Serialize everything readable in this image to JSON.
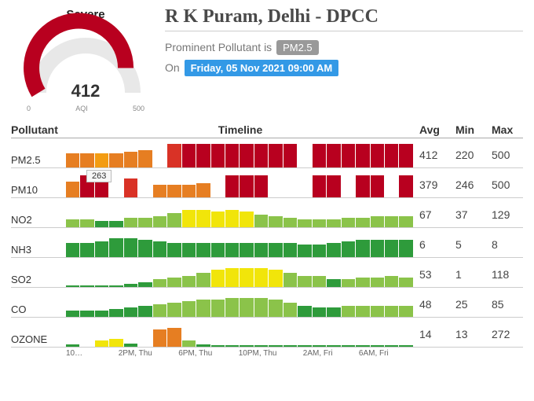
{
  "gauge": {
    "label": "Severe",
    "value": "412",
    "min": "0",
    "mid": "AQI",
    "max": "500",
    "ring_color": "#b8001f",
    "ring_bg": "#e8e8e8"
  },
  "header": {
    "location": "R K Puram, Delhi - DPCC",
    "prominent_prefix": "Prominent Pollutant is",
    "prominent_value": "PM2.5",
    "on_label": "On",
    "timestamp": "Friday, 05 Nov 2021 09:00 AM"
  },
  "columns": {
    "pollutant": "Pollutant",
    "timeline": "Timeline",
    "avg": "Avg",
    "min": "Min",
    "max": "Max"
  },
  "tooltip_value": "263",
  "colors": {
    "dark_red": "#b8001f",
    "red": "#d93226",
    "orange": "#e67e22",
    "lt_orange": "#f39c12",
    "yellow": "#f1e50a",
    "lt_green": "#8bc34a",
    "green": "#2e9b3b"
  },
  "pollutants": [
    {
      "name": "PM2.5",
      "avg": "412",
      "min": "220",
      "max": "500",
      "bars": [
        {
          "h": 18,
          "c": "orange"
        },
        {
          "h": 18,
          "c": "orange"
        },
        {
          "h": 18,
          "c": "lt_orange"
        },
        {
          "h": 18,
          "c": "orange"
        },
        {
          "h": 20,
          "c": "orange"
        },
        {
          "h": 22,
          "c": "orange"
        },
        {
          "h": 0,
          "c": "orange"
        },
        {
          "h": 30,
          "c": "red"
        },
        {
          "h": 30,
          "c": "dark_red"
        },
        {
          "h": 30,
          "c": "dark_red"
        },
        {
          "h": 30,
          "c": "dark_red"
        },
        {
          "h": 30,
          "c": "dark_red"
        },
        {
          "h": 30,
          "c": "dark_red"
        },
        {
          "h": 30,
          "c": "dark_red"
        },
        {
          "h": 30,
          "c": "dark_red"
        },
        {
          "h": 30,
          "c": "dark_red"
        },
        {
          "h": 0,
          "c": "dark_red"
        },
        {
          "h": 30,
          "c": "dark_red"
        },
        {
          "h": 30,
          "c": "dark_red"
        },
        {
          "h": 30,
          "c": "dark_red"
        },
        {
          "h": 30,
          "c": "dark_red"
        },
        {
          "h": 30,
          "c": "dark_red"
        },
        {
          "h": 30,
          "c": "dark_red"
        },
        {
          "h": 30,
          "c": "dark_red"
        }
      ]
    },
    {
      "name": "PM10",
      "avg": "379",
      "min": "246",
      "max": "500",
      "bars": [
        {
          "h": 20,
          "c": "orange"
        },
        {
          "h": 28,
          "c": "dark_red"
        },
        {
          "h": 26,
          "c": "dark_red"
        },
        {
          "h": 0,
          "c": "dark_red"
        },
        {
          "h": 24,
          "c": "red"
        },
        {
          "h": 0,
          "c": "red"
        },
        {
          "h": 16,
          "c": "orange"
        },
        {
          "h": 16,
          "c": "orange"
        },
        {
          "h": 16,
          "c": "orange"
        },
        {
          "h": 18,
          "c": "orange"
        },
        {
          "h": 0,
          "c": "orange"
        },
        {
          "h": 28,
          "c": "dark_red"
        },
        {
          "h": 28,
          "c": "dark_red"
        },
        {
          "h": 28,
          "c": "dark_red"
        },
        {
          "h": 0,
          "c": "dark_red"
        },
        {
          "h": 0,
          "c": "dark_red"
        },
        {
          "h": 0,
          "c": "dark_red"
        },
        {
          "h": 28,
          "c": "dark_red"
        },
        {
          "h": 28,
          "c": "dark_red"
        },
        {
          "h": 0,
          "c": "dark_red"
        },
        {
          "h": 28,
          "c": "dark_red"
        },
        {
          "h": 28,
          "c": "dark_red"
        },
        {
          "h": 0,
          "c": "dark_red"
        },
        {
          "h": 28,
          "c": "dark_red"
        }
      ]
    },
    {
      "name": "NO2",
      "avg": "67",
      "min": "37",
      "max": "129",
      "bars": [
        {
          "h": 10,
          "c": "lt_green"
        },
        {
          "h": 10,
          "c": "lt_green"
        },
        {
          "h": 8,
          "c": "green"
        },
        {
          "h": 8,
          "c": "green"
        },
        {
          "h": 12,
          "c": "lt_green"
        },
        {
          "h": 12,
          "c": "lt_green"
        },
        {
          "h": 14,
          "c": "lt_green"
        },
        {
          "h": 18,
          "c": "lt_green"
        },
        {
          "h": 22,
          "c": "yellow"
        },
        {
          "h": 22,
          "c": "yellow"
        },
        {
          "h": 20,
          "c": "yellow"
        },
        {
          "h": 22,
          "c": "yellow"
        },
        {
          "h": 20,
          "c": "yellow"
        },
        {
          "h": 16,
          "c": "lt_green"
        },
        {
          "h": 14,
          "c": "lt_green"
        },
        {
          "h": 12,
          "c": "lt_green"
        },
        {
          "h": 10,
          "c": "lt_green"
        },
        {
          "h": 10,
          "c": "lt_green"
        },
        {
          "h": 10,
          "c": "lt_green"
        },
        {
          "h": 12,
          "c": "lt_green"
        },
        {
          "h": 12,
          "c": "lt_green"
        },
        {
          "h": 14,
          "c": "lt_green"
        },
        {
          "h": 14,
          "c": "lt_green"
        },
        {
          "h": 14,
          "c": "lt_green"
        }
      ]
    },
    {
      "name": "NH3",
      "avg": "6",
      "min": "5",
      "max": "8",
      "bars": [
        {
          "h": 18,
          "c": "green"
        },
        {
          "h": 18,
          "c": "green"
        },
        {
          "h": 20,
          "c": "green"
        },
        {
          "h": 24,
          "c": "green"
        },
        {
          "h": 24,
          "c": "green"
        },
        {
          "h": 22,
          "c": "green"
        },
        {
          "h": 20,
          "c": "green"
        },
        {
          "h": 18,
          "c": "green"
        },
        {
          "h": 18,
          "c": "green"
        },
        {
          "h": 18,
          "c": "green"
        },
        {
          "h": 18,
          "c": "green"
        },
        {
          "h": 18,
          "c": "green"
        },
        {
          "h": 18,
          "c": "green"
        },
        {
          "h": 18,
          "c": "green"
        },
        {
          "h": 18,
          "c": "green"
        },
        {
          "h": 18,
          "c": "green"
        },
        {
          "h": 16,
          "c": "green"
        },
        {
          "h": 16,
          "c": "green"
        },
        {
          "h": 18,
          "c": "green"
        },
        {
          "h": 20,
          "c": "green"
        },
        {
          "h": 22,
          "c": "green"
        },
        {
          "h": 22,
          "c": "green"
        },
        {
          "h": 22,
          "c": "green"
        },
        {
          "h": 22,
          "c": "green"
        }
      ]
    },
    {
      "name": "SO2",
      "avg": "53",
      "min": "1",
      "max": "118",
      "bars": [
        {
          "h": 2,
          "c": "green"
        },
        {
          "h": 2,
          "c": "green"
        },
        {
          "h": 2,
          "c": "green"
        },
        {
          "h": 2,
          "c": "green"
        },
        {
          "h": 4,
          "c": "green"
        },
        {
          "h": 6,
          "c": "green"
        },
        {
          "h": 10,
          "c": "lt_green"
        },
        {
          "h": 12,
          "c": "lt_green"
        },
        {
          "h": 14,
          "c": "lt_green"
        },
        {
          "h": 18,
          "c": "lt_green"
        },
        {
          "h": 22,
          "c": "yellow"
        },
        {
          "h": 24,
          "c": "yellow"
        },
        {
          "h": 24,
          "c": "yellow"
        },
        {
          "h": 24,
          "c": "yellow"
        },
        {
          "h": 22,
          "c": "yellow"
        },
        {
          "h": 18,
          "c": "lt_green"
        },
        {
          "h": 14,
          "c": "lt_green"
        },
        {
          "h": 14,
          "c": "lt_green"
        },
        {
          "h": 10,
          "c": "green"
        },
        {
          "h": 10,
          "c": "lt_green"
        },
        {
          "h": 12,
          "c": "lt_green"
        },
        {
          "h": 12,
          "c": "lt_green"
        },
        {
          "h": 14,
          "c": "lt_green"
        },
        {
          "h": 12,
          "c": "lt_green"
        }
      ]
    },
    {
      "name": "CO",
      "avg": "48",
      "min": "25",
      "max": "85",
      "bars": [
        {
          "h": 8,
          "c": "green"
        },
        {
          "h": 8,
          "c": "green"
        },
        {
          "h": 8,
          "c": "green"
        },
        {
          "h": 10,
          "c": "green"
        },
        {
          "h": 12,
          "c": "green"
        },
        {
          "h": 14,
          "c": "green"
        },
        {
          "h": 16,
          "c": "lt_green"
        },
        {
          "h": 18,
          "c": "lt_green"
        },
        {
          "h": 20,
          "c": "lt_green"
        },
        {
          "h": 22,
          "c": "lt_green"
        },
        {
          "h": 22,
          "c": "lt_green"
        },
        {
          "h": 24,
          "c": "lt_green"
        },
        {
          "h": 24,
          "c": "lt_green"
        },
        {
          "h": 24,
          "c": "lt_green"
        },
        {
          "h": 22,
          "c": "lt_green"
        },
        {
          "h": 18,
          "c": "lt_green"
        },
        {
          "h": 14,
          "c": "green"
        },
        {
          "h": 12,
          "c": "green"
        },
        {
          "h": 12,
          "c": "green"
        },
        {
          "h": 14,
          "c": "lt_green"
        },
        {
          "h": 14,
          "c": "lt_green"
        },
        {
          "h": 14,
          "c": "lt_green"
        },
        {
          "h": 14,
          "c": "lt_green"
        },
        {
          "h": 14,
          "c": "lt_green"
        }
      ]
    },
    {
      "name": "OZONE",
      "avg": "14",
      "min": "13",
      "max": "272",
      "bars": [
        {
          "h": 3,
          "c": "green"
        },
        {
          "h": 0,
          "c": "green"
        },
        {
          "h": 8,
          "c": "yellow"
        },
        {
          "h": 10,
          "c": "yellow"
        },
        {
          "h": 4,
          "c": "green"
        },
        {
          "h": 0,
          "c": "green"
        },
        {
          "h": 22,
          "c": "orange"
        },
        {
          "h": 24,
          "c": "orange"
        },
        {
          "h": 8,
          "c": "lt_green"
        },
        {
          "h": 3,
          "c": "green"
        },
        {
          "h": 2,
          "c": "green"
        },
        {
          "h": 2,
          "c": "green"
        },
        {
          "h": 2,
          "c": "green"
        },
        {
          "h": 2,
          "c": "green"
        },
        {
          "h": 2,
          "c": "green"
        },
        {
          "h": 2,
          "c": "green"
        },
        {
          "h": 2,
          "c": "green"
        },
        {
          "h": 2,
          "c": "green"
        },
        {
          "h": 2,
          "c": "green"
        },
        {
          "h": 2,
          "c": "green"
        },
        {
          "h": 2,
          "c": "green"
        },
        {
          "h": 2,
          "c": "green"
        },
        {
          "h": 2,
          "c": "green"
        },
        {
          "h": 2,
          "c": "green"
        }
      ]
    }
  ],
  "xaxis": [
    "10…",
    "",
    "2PM, Thu",
    "",
    "6PM, Thu",
    "",
    "10PM, Thu",
    "",
    "2AM, Fri",
    "",
    "6AM, Fri",
    ""
  ]
}
